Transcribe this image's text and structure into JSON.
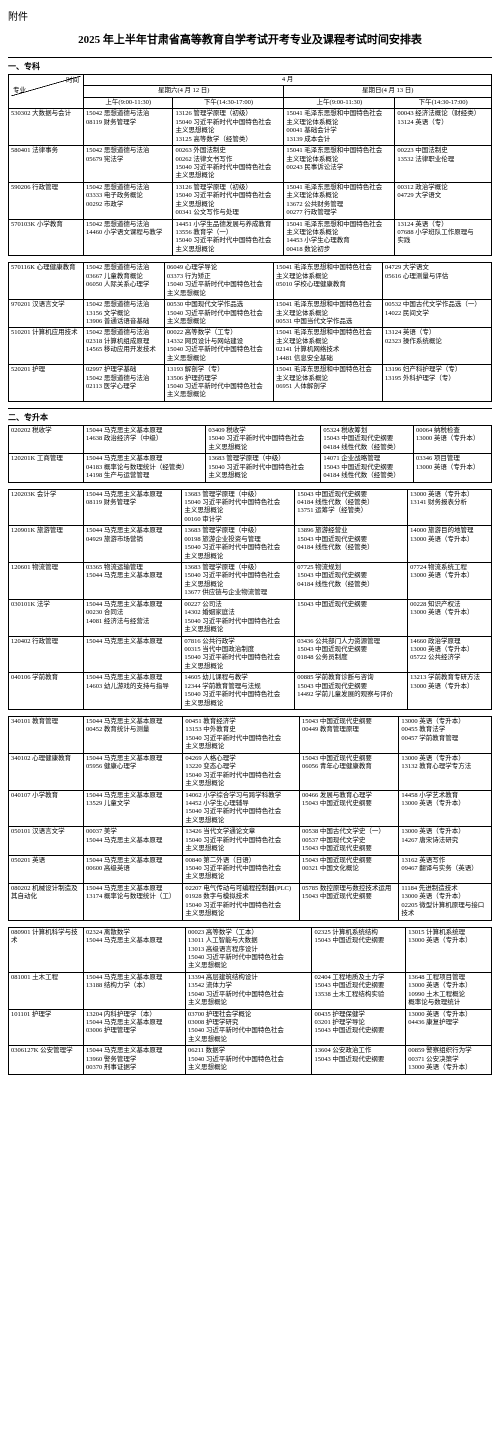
{
  "attach": "附件",
  "title": "2025 年上半年甘肃省高等教育自学考试开考专业及课程考试时间安排表",
  "sections": {
    "s1": "一、专科",
    "s2": "二、专升本"
  },
  "hdr": {
    "time": "时间",
    "major": "专业",
    "month": "4 月",
    "sat": "星期六(4 月 12 日)",
    "sun": "星期日(4 月 13 日)",
    "am": "上午(9:00-11:30)",
    "pm": "下午(14:30-17:00)"
  },
  "t1": [
    {
      "m": "530302 大数据与会计",
      "a": "15042 思想道德与法治\n08119 财务管理学",
      "b": "13126 管理学原理（初级）\n15040 习近平新时代中国特色社会\n主义思想概论\n13125 高等数学（经管类）",
      "c": "15041 毛泽东思想和中国特色社会\n主义理论体系概论\n00041 基础会计学\n13139 成本会计",
      "d": "00043 经济法概论（财经类）\n13124 英语（专）"
    },
    {
      "m": "580401 法律事务",
      "a": "15042 思想道德与法治\n05679 宪法学",
      "b": "00263 外国法制史\n00262 法律文书写作\n15040 习近平新时代中国特色社会\n主义思想概论",
      "c": "15041 毛泽东思想和中国特色社会\n主义理论体系概论\n00243 民事诉讼法学",
      "d": "00223 中国法制史\n13532 法律职业伦理"
    },
    {
      "m": "590206 行政管理",
      "a": "15042 思想道德与法治\n03333 电子政务概论\n00292 市政学",
      "b": "13126 管理学原理（初级）\n15040 习近平新时代中国特色社会\n主义思想概论\n00341 公文写作与处理",
      "c": "15041 毛泽东思想和中国特色社会\n主义理论体系概论\n13672 公共财务管理\n00277 行政管理学",
      "d": "00312 政治学概论\n04729 大学语文"
    },
    {
      "m": "570103K 小学教育",
      "a": "15042 思想道德与法治\n14460 小学语文课程与教学",
      "b": "14451 小学生品德发展与养成教育\n13556 教育学（一）\n15040 习近平新时代中国特色社会\n主义思想概论",
      "c": "15041 毛泽东思想和中国特色社会\n主义理论体系概论\n14453 小学生心理教育\n00418 数论初步",
      "d": "13124 英语（专）\n07688 小学班队工作原理与\n实践"
    }
  ],
  "t2": [
    {
      "m": "570116K 心理健康教育",
      "a": "15042 思想道德与法治\n03667 儿童教育概论\n06050 人际关系心理学",
      "b": "06049 心理学导论\n03373 行为矫正\n15040 习近平新时代中国特色社会\n主义思想概论",
      "c": "15041 毛泽东思想和中国特色社会\n主义理论体系概论\n05010 学校心理健康教育",
      "d": "04729 大学语文\n05616 心理测量与评估"
    },
    {
      "m": "970201 汉语言文学",
      "a": "15042 思想道德与法治\n13156 文学概论\n13906 普通话语音基础",
      "b": "00530 中国现代文学作品选\n15040 习近平新时代中国特色社会\n主义思想概论",
      "c": "15041 毛泽东思想和中国特色社会\n主义理论体系概论\n00531 中国当代文学作品选",
      "d": "00532 中国古代文学作品选（一）\n14022 民间文学"
    },
    {
      "m": "510201 计算机应用技术",
      "a": "15042 思想道德与法治\n02318 计算机组成原理\n14565 移动应用开发技术",
      "b": "00022 高等数学（工专）\n14332 网页设计与网站建设\n15040 习近平新时代中国特色社会\n主义思想概论",
      "c": "15041 毛泽东思想和中国特色社会\n主义理论体系概论\n02141 计算机网络技术\n14481 信息安全基础",
      "d": "13124 英语（专）\n02323 操作系统概论"
    },
    {
      "m": "520201 护理",
      "a": "02997 护理学基础\n15042 思想道德与法治\n02113 医学心理学",
      "b": "13193 解剖学（专）\n13506 护理药理学\n15040 习近平新时代中国特色社会\n主义思想概论",
      "c": "15041 毛泽东思想和中国特色社会\n主义理论体系概论\n06951 人体解剖学",
      "d": "13196 妇产科护理学（专）\n13195 外科护理学（专）"
    }
  ],
  "t3": [
    {
      "m": "020202 税收学",
      "a": "15044 马克思主义基本原理\n14638 政治经济学（中级）",
      "b": "03409 税收学\n15040 习近平新时代中国特色社会\n主义思想概论",
      "c": "05324 税收筹划\n15043 中国近现代史纲要\n04184 线性代数（经管类）",
      "d": "00064 纳税检查\n13000 英语（专升本）"
    },
    {
      "m": "120201K 工商管理",
      "a": "15044 马克思主义基本原理\n04183 概率论与数理统计（经管类）\n14198 生产与运营管理",
      "b": "13683 管理学原理（中级）\n15040 习近平新时代中国特色社会\n主义思想概论",
      "c": "14071 企业战略管理\n15043 中国近现代史纲要\n04184 线性代数（经管类）",
      "d": "03346 项目管理\n13000 英语（专升本）"
    }
  ],
  "t4": [
    {
      "m": "120203K 会计学",
      "a": "15044 马克思主义基本原理\n08119 财务管理学",
      "b": "13683 管理学原理（中级）\n15040 习近平新时代中国特色社会\n主义思想概论\n00160 审计学",
      "c": "15043 中国近现代史纲要\n04184 线性代数（经管类）\n13751 运筹学（经管类）",
      "d": "13000 英语（专升本）\n13141 财务报表分析"
    },
    {
      "m": "120901K 旅游管理",
      "a": "15044 马克思主义基本原理\n04929 旅游市场营销",
      "b": "13683 管理学原理（中级）\n00198 旅游企业投资与管理\n15040 习近平新时代中国特色社会\n主义思想概论",
      "c": "13896 旅游经营业\n15043 中国近现代史纲要\n04184 线性代数（经管类）",
      "d": "14000 旅游目的地管理\n13000 英语（专升本）"
    },
    {
      "m": "120601 物流管理",
      "a": "03365 物流运输管理\n15044 马克思主义基本原理",
      "b": "13683 管理学原理（中级）\n15040 习近平新时代中国特色社会\n主义思想概论\n13677 供应链与企业物流管理",
      "c": "07725 物流规划\n15043 中国近现代史纲要\n04184 线性代数（经管类）",
      "d": "07724 物流系统工程\n13000 英语（专升本）"
    },
    {
      "m": "030101K 法学",
      "a": "15044 马克思主义基本原理\n00230 合同法\n14081 经济法与经营法",
      "b": "00227 公司法\n14302 婚姻家庭法\n15040 习近平新时代中国特色社会\n主义思想概论",
      "c": "15043 中国近现代史纲要",
      "d": "00228 知识产权法\n13000 英语（专升本）"
    },
    {
      "m": "120402 行政管理",
      "a": "15044 马克思主义基本原理",
      "b": "07816 公共行政学\n00315 当代中国政治制度\n15040 习近平新时代中国特色社会\n主义思想概论",
      "c": "03436 公共部门人力资源管理\n15043 中国近现代史纲要\n01848 公务员制度",
      "d": "14660 政治学原理\n13000 英语（专升本）\n05722 公共经济学"
    },
    {
      "m": "040106 学前教育",
      "a": "15044 马克思主义基本原理\n14603 幼儿游戏的支持与指导",
      "b": "14605 幼儿课程与教学\n12344 学前教育管理与法规\n15040 习近平新时代中国特色社会\n主义思想概论",
      "c": "00885 学前教育诊断与咨询\n15043 中国近现代史纲要\n14492 学前儿童发展的观察与评价",
      "d": "13213 学前教育专研方法\n13000 英语（专升本）"
    }
  ],
  "t5": [
    {
      "m": "340101 教育管理",
      "a": "15044 马克思主义基本原理\n00452 教育统计与测量",
      "b": "00451 教育经济学\n13153 中外教育史\n15040 习近平新时代中国特色社会\n主义思想概论",
      "c": "15043 中国近现代史纲要\n00449 教育管理原理",
      "d": "13000 英语（专升本）\n00455 教育法学\n00457 学前教育管理"
    },
    {
      "m": "340102 心理健康教育",
      "a": "15044 马克思主义基本原理\n05956 健康心理学",
      "b": "04269 人格心理学\n13220 变态心理学\n15040 习近平新时代中国特色社会\n主义思想概论",
      "c": "15043 中国近现代史纲要\n06056 青年心理健康教育",
      "d": "13000 英语（专升本）\n13132 教育心理学专方法"
    },
    {
      "m": "040107 小学教育",
      "a": "15044 马克思主义基本原理\n13529 儿童文学",
      "b": "14062 小学综合学习与跨学科教学\n14452 小学生心理辅导\n15040 习近平新时代中国特色社会\n主义思想概论",
      "c": "00466 发展与教育心理学\n15043 中国近现代史纲要",
      "d": "14458 小学艺术教育\n13000 英语（专升本）"
    },
    {
      "m": "050101 汉语言文学",
      "a": "00037 美学\n15044 马克思主义基本原理",
      "b": "13426 当代文学通论文章\n15040 习近平新时代中国特色社会\n主义思想概论",
      "c": "00538 中国古代文学史（一）\n00537 中国现代文学史\n15043 中国近现代史纲要",
      "d": "13000 英语（专升本）\n14267 唐宋诗法研究"
    },
    {
      "m": "050201 英语",
      "a": "15044 马克思主义基本原理\n00600 高级英语",
      "b": "00840 第二外语（日语）\n15040 习近平新时代中国特色社会\n主义思想概论",
      "c": "15043 中国近现代史纲要\n00321 中国文化概论",
      "d": "13162 英语写作\n09467 翻译与实务（英语）"
    },
    {
      "m": "080202 机械设计制造及\n其自动化",
      "a": "15044 马克思主义基本原理\n13174 概率论与数理统计（工）",
      "b": "02207 电气传动与可编程控制器(PLC)\n01928 数字与模拟技术\n15040 习近平新时代中国特色社会\n主义思想概论",
      "c": "05785 数控原理与数控技术运用\n15043 中国近现代史纲要",
      "d": "11184 先进制造技术\n13000 英语（专升本）\n02205 微型计算机原理与接口\n技术"
    }
  ],
  "t6": [
    {
      "m": "080901 计算机科学与技术",
      "a": "02324 离散数学\n15044 马克思主义基本原理",
      "b": "00023 高等数学（工本）\n13011 人工智能与大数据\n13013 高级语言程序设计\n15040 习近平新时代中国特色社会\n主义思想概论",
      "c": "02325 计算机系统结构\n15043 中国近现代史纲要",
      "d": "13015 计算机系统理\n13000 英语（专升本）"
    },
    {
      "m": "081001 土木工程",
      "a": "15044 马克思主义基本原理\n13188 结构力学（本）",
      "b": "13394 高层建筑结构设计\n13542 流体力学\n15040 习近平新时代中国特色社会\n主义思想概论",
      "c": "02404 工程地质及土力学\n15043 中国近现代史纲要\n13538 土木工程结构实验",
      "d": "13648 工程项目管理\n13000 英语（专升本）\n10990 土木工程概论\n概率论与数理统计"
    },
    {
      "m": "101101 护理学",
      "a": "13204 内科护理学（本）\n15044 马克思主义基本原理\n03006 护理管理学",
      "b": "03700 护理社会学概论\n03008 护理学研究\n15040 习近平新时代中国特色社会\n主义思想概论",
      "c": "00435 护理保健学\n03201 护理学导论\n15043 中国近现代史纲要",
      "d": "13000 英语（专升本）\n04436 康复护理学"
    },
    {
      "m": "0306127K 公安管理学",
      "a": "15044 马克思主义基本原理\n13960 警务管理学\n00370 刑事证据学",
      "b": "06211 数据学\n15040 习近平新时代中国特色社会\n主义思想概论",
      "c": "13604 公安政治工作\n15043 中国近现代史纲要",
      "d": "00859 警察组织行为学\n00371 公安决策学\n13000 英语（专升本）"
    }
  ]
}
